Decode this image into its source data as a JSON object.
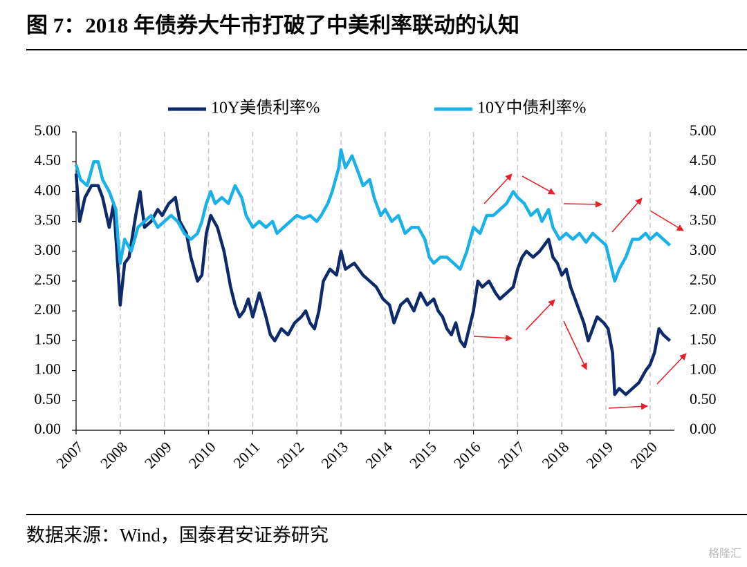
{
  "chart_data": {
    "type": "line",
    "title": "图 7：2018 年债券大牛市打破了中美利率联动的认知",
    "source": "数据来源：Wind，国泰君安证券研究",
    "watermark": "格隆汇",
    "legend": "top",
    "grid": "x-dashed",
    "xlim": [
      2007,
      2020.55
    ],
    "xticks": [
      2007,
      2008,
      2009,
      2010,
      2011,
      2012,
      2013,
      2014,
      2015,
      2016,
      2017,
      2018,
      2019,
      2020
    ],
    "ylim": [
      0,
      5
    ],
    "yticks": [
      {
        "value": 0,
        "label": "0.00"
      },
      {
        "value": 0.5,
        "label": "0.50"
      },
      {
        "value": 1,
        "label": "1.00"
      },
      {
        "value": 1.5,
        "label": "1.50"
      },
      {
        "value": 2,
        "label": "2.00"
      },
      {
        "value": 2.5,
        "label": "2.50"
      },
      {
        "value": 3,
        "label": "3.00"
      },
      {
        "value": 3.5,
        "label": "3.50"
      },
      {
        "value": 4,
        "label": "4.00"
      },
      {
        "value": 4.5,
        "label": "4.50"
      },
      {
        "value": 5,
        "label": "5.00"
      }
    ],
    "y2lim": [
      0,
      5
    ],
    "y2ticks": [
      {
        "value": 0,
        "label": "0.00"
      },
      {
        "value": 0.5,
        "label": "0.50"
      },
      {
        "value": 1,
        "label": "1.00"
      },
      {
        "value": 1.5,
        "label": "1.50"
      },
      {
        "value": 2,
        "label": "2.00"
      },
      {
        "value": 2.5,
        "label": "2.50"
      },
      {
        "value": 3,
        "label": "3.00"
      },
      {
        "value": 3.5,
        "label": "3.50"
      },
      {
        "value": 4,
        "label": "4.00"
      },
      {
        "value": 4.5,
        "label": "4.50"
      },
      {
        "value": 5,
        "label": "5.00"
      }
    ],
    "series": [
      {
        "name": "10Y美债利率%",
        "color": "#0e2a6b",
        "axis": "y",
        "x": [
          2007.0,
          2007.08,
          2007.2,
          2007.35,
          2007.5,
          2007.6,
          2007.75,
          2007.85,
          2007.95,
          2008.0,
          2008.1,
          2008.2,
          2008.35,
          2008.45,
          2008.55,
          2008.7,
          2008.85,
          2008.95,
          2009.1,
          2009.25,
          2009.35,
          2009.5,
          2009.6,
          2009.75,
          2009.85,
          2009.95,
          2010.05,
          2010.2,
          2010.35,
          2010.5,
          2010.6,
          2010.7,
          2010.8,
          2010.9,
          2011.0,
          2011.15,
          2011.3,
          2011.4,
          2011.5,
          2011.65,
          2011.8,
          2011.95,
          2012.1,
          2012.2,
          2012.3,
          2012.4,
          2012.5,
          2012.6,
          2012.75,
          2012.9,
          2013.0,
          2013.1,
          2013.3,
          2013.5,
          2013.65,
          2013.8,
          2013.95,
          2014.1,
          2014.2,
          2014.35,
          2014.5,
          2014.65,
          2014.8,
          2014.95,
          2015.1,
          2015.2,
          2015.3,
          2015.4,
          2015.5,
          2015.6,
          2015.7,
          2015.8,
          2015.9,
          2016.0,
          2016.1,
          2016.2,
          2016.35,
          2016.5,
          2016.6,
          2016.75,
          2016.9,
          2017.0,
          2017.1,
          2017.2,
          2017.35,
          2017.5,
          2017.6,
          2017.7,
          2017.8,
          2017.9,
          2018.0,
          2018.1,
          2018.2,
          2018.3,
          2018.4,
          2018.5,
          2018.6,
          2018.7,
          2018.8,
          2018.95,
          2019.05,
          2019.15,
          2019.2,
          2019.3,
          2019.45,
          2019.6,
          2019.75,
          2019.9,
          2020.0,
          2020.1,
          2020.2,
          2020.3,
          2020.45
        ],
        "values": [
          4.3,
          3.5,
          3.9,
          4.1,
          4.1,
          3.9,
          3.4,
          3.8,
          2.7,
          2.1,
          2.8,
          2.9,
          3.6,
          4.0,
          3.4,
          3.5,
          3.7,
          3.6,
          3.8,
          3.9,
          3.5,
          3.3,
          2.9,
          2.5,
          2.6,
          3.3,
          3.6,
          3.4,
          3.0,
          2.4,
          2.1,
          1.9,
          2.0,
          2.2,
          1.9,
          2.3,
          1.9,
          1.6,
          1.5,
          1.7,
          1.6,
          1.8,
          1.9,
          2.0,
          1.8,
          1.7,
          2.0,
          2.5,
          2.7,
          2.6,
          3.0,
          2.7,
          2.8,
          2.6,
          2.5,
          2.4,
          2.2,
          2.1,
          1.8,
          2.1,
          2.2,
          2.0,
          2.3,
          2.1,
          2.2,
          2.0,
          1.9,
          1.7,
          1.6,
          1.8,
          1.5,
          1.4,
          1.7,
          2.0,
          2.5,
          2.4,
          2.5,
          2.3,
          2.2,
          2.3,
          2.4,
          2.7,
          2.9,
          3.0,
          2.9,
          3.0,
          3.1,
          3.2,
          2.9,
          2.8,
          2.6,
          2.7,
          2.4,
          2.2,
          2.0,
          1.8,
          1.5,
          1.7,
          1.9,
          1.8,
          1.7,
          1.3,
          0.6,
          0.7,
          0.6,
          0.7,
          0.8,
          1.0,
          1.1,
          1.3,
          1.7,
          1.6,
          1.5
        ]
      },
      {
        "name": "10Y中债利率%",
        "color": "#1ab0e8",
        "axis": "y2",
        "x": [
          2007.0,
          2007.1,
          2007.25,
          2007.4,
          2007.5,
          2007.6,
          2007.75,
          2007.9,
          2007.95,
          2008.0,
          2008.1,
          2008.25,
          2008.4,
          2008.55,
          2008.7,
          2008.85,
          2009.0,
          2009.15,
          2009.3,
          2009.45,
          2009.6,
          2009.75,
          2009.85,
          2009.95,
          2010.05,
          2010.15,
          2010.3,
          2010.45,
          2010.6,
          2010.75,
          2010.85,
          2011.0,
          2011.15,
          2011.3,
          2011.45,
          2011.55,
          2011.7,
          2011.85,
          2012.0,
          2012.15,
          2012.3,
          2012.45,
          2012.55,
          2012.7,
          2012.8,
          2012.95,
          2013.0,
          2013.1,
          2013.25,
          2013.4,
          2013.5,
          2013.65,
          2013.75,
          2013.9,
          2014.0,
          2014.15,
          2014.3,
          2014.45,
          2014.6,
          2014.75,
          2014.9,
          2015.0,
          2015.1,
          2015.25,
          2015.4,
          2015.55,
          2015.7,
          2015.85,
          2016.0,
          2016.15,
          2016.3,
          2016.45,
          2016.6,
          2016.75,
          2016.9,
          2017.0,
          2017.15,
          2017.3,
          2017.45,
          2017.55,
          2017.7,
          2017.8,
          2017.95,
          2018.1,
          2018.25,
          2018.4,
          2018.55,
          2018.7,
          2018.85,
          2019.0,
          2019.1,
          2019.2,
          2019.3,
          2019.45,
          2019.6,
          2019.75,
          2019.9,
          2020.0,
          2020.15,
          2020.3,
          2020.45
        ],
        "values": [
          4.45,
          4.2,
          4.1,
          4.5,
          4.5,
          4.2,
          4.0,
          3.7,
          3.2,
          2.8,
          3.2,
          3.0,
          3.4,
          3.5,
          3.6,
          3.4,
          3.5,
          3.6,
          3.5,
          3.3,
          3.2,
          3.3,
          3.5,
          3.8,
          4.0,
          3.8,
          3.9,
          3.8,
          4.1,
          3.9,
          3.6,
          3.4,
          3.5,
          3.4,
          3.5,
          3.3,
          3.4,
          3.5,
          3.6,
          3.55,
          3.6,
          3.5,
          3.6,
          3.8,
          4.0,
          4.4,
          4.7,
          4.4,
          4.6,
          4.3,
          4.1,
          4.2,
          3.9,
          3.6,
          3.7,
          3.5,
          3.6,
          3.3,
          3.4,
          3.4,
          3.2,
          2.9,
          2.8,
          2.9,
          2.9,
          2.8,
          2.7,
          3.0,
          3.4,
          3.3,
          3.6,
          3.6,
          3.7,
          3.8,
          4.0,
          3.9,
          3.8,
          3.6,
          3.7,
          3.5,
          3.7,
          3.4,
          3.2,
          3.3,
          3.2,
          3.3,
          3.15,
          3.3,
          3.2,
          3.1,
          2.8,
          2.5,
          2.7,
          2.9,
          3.2,
          3.2,
          3.3,
          3.2,
          3.3,
          3.2,
          3.1
        ]
      }
    ]
  }
}
